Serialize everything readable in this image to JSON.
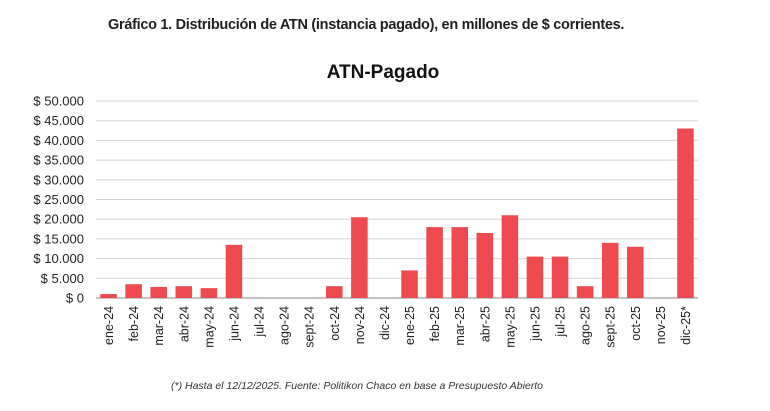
{
  "figure_title": "Gráfico 1. Distribución de ATN (instancia pagado), en millones de $ corrientes.",
  "footnote": "(*) Hasta el 12/12/2025. Fuente: Politikon Chaco en base a Presupuesto Abierto",
  "colors": {
    "bar": "#ef4a4f",
    "grid": "#d4d4d4",
    "axis": "#888888"
  },
  "chart_data": {
    "type": "bar",
    "title": "ATN-Pagado",
    "xlabel": "",
    "ylabel": "",
    "ylim": [
      0,
      50000
    ],
    "yticks": [
      0,
      5000,
      10000,
      15000,
      20000,
      25000,
      30000,
      35000,
      40000,
      45000,
      50000
    ],
    "ytick_labels": [
      "$ 0",
      "$ 5.000",
      "$ 10.000",
      "$ 15.000",
      "$ 20.000",
      "$ 25.000",
      "$ 30.000",
      "$ 35.000",
      "$ 40.000",
      "$ 45.000",
      "$ 50.000"
    ],
    "grid": true,
    "categories": [
      "ene-24",
      "feb-24",
      "mar-24",
      "abr-24",
      "may-24",
      "jun-24",
      "jul-24",
      "ago-24",
      "sept-24",
      "oct-24",
      "nov-24",
      "dic-24",
      "ene-25",
      "feb-25",
      "mar-25",
      "abr-25",
      "may-25",
      "jun-25",
      "jul-25",
      "ago-25",
      "sept-25",
      "oct-25",
      "nov-25",
      "dic-25*"
    ],
    "values": [
      1000,
      3500,
      2800,
      3000,
      2500,
      13500,
      0,
      0,
      0,
      3000,
      20500,
      0,
      7000,
      18000,
      18000,
      16500,
      21000,
      10500,
      10500,
      3000,
      14000,
      13000,
      0,
      43000
    ]
  }
}
